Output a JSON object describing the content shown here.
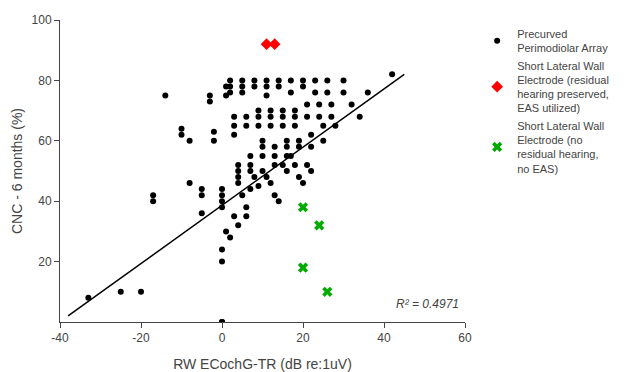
{
  "chart_data": {
    "type": "scatter",
    "xlabel": "RW ECochG-TR (dB re:1uV)",
    "ylabel": "CNC - 6 months (%)",
    "xlim": [
      -40,
      60
    ],
    "ylim": [
      0,
      100
    ],
    "xticks": [
      -40,
      -20,
      0,
      20,
      40,
      60
    ],
    "yticks": [
      20,
      40,
      60,
      80,
      100
    ],
    "grid": false,
    "legend": "right",
    "annotations": [
      "R² = 0.4971"
    ],
    "series": [
      {
        "type": "line",
        "color": "#000000",
        "line_style": "solid",
        "x": [
          -38,
          45
        ],
        "values": [
          2,
          82
        ]
      },
      {
        "type": "scatter",
        "name": "Precurved\nPerimodiolar Array",
        "color": "#000000",
        "marker": "circle",
        "x": [
          -33,
          -25,
          -20,
          -17,
          -17,
          -14,
          -10,
          -10,
          -8,
          -8,
          -5,
          -5,
          -5,
          -3,
          -3,
          -2,
          -2,
          0,
          0,
          0,
          0,
          1,
          1,
          2,
          2,
          2,
          3,
          3,
          3,
          4,
          4,
          4,
          4,
          5,
          5,
          5,
          6,
          6,
          7,
          7,
          7,
          8,
          8,
          9,
          9,
          9,
          10,
          10,
          10,
          11,
          11,
          11,
          12,
          12,
          12,
          13,
          13,
          13,
          14,
          14,
          15,
          15,
          15,
          16,
          16,
          16,
          17,
          17,
          18,
          18,
          18,
          19,
          19,
          20,
          20,
          21,
          21,
          22,
          22,
          23,
          23,
          24,
          24,
          25,
          25,
          26,
          26,
          27,
          27,
          28,
          30,
          30,
          32,
          34,
          36,
          42,
          0,
          0,
          1,
          2,
          3,
          4,
          5,
          6,
          6,
          7,
          8,
          9,
          10,
          11,
          12,
          13,
          14,
          15,
          16,
          17,
          18,
          19,
          20,
          21,
          22,
          0,
          0
        ],
        "values": [
          8,
          10,
          10,
          40,
          42,
          75,
          62,
          64,
          46,
          60,
          42,
          44,
          36,
          75,
          73,
          63,
          60,
          44,
          42,
          40,
          38,
          78,
          75,
          80,
          78,
          76,
          68,
          65,
          62,
          52,
          50,
          48,
          46,
          80,
          78,
          76,
          68,
          65,
          55,
          52,
          50,
          80,
          78,
          70,
          68,
          65,
          60,
          58,
          55,
          80,
          78,
          75,
          70,
          68,
          65,
          58,
          55,
          52,
          80,
          78,
          70,
          68,
          65,
          60,
          58,
          55,
          80,
          76,
          70,
          68,
          65,
          60,
          58,
          80,
          78,
          72,
          68,
          62,
          58,
          80,
          76,
          72,
          68,
          65,
          60,
          80,
          76,
          72,
          68,
          65,
          80,
          76,
          72,
          68,
          76,
          82,
          24,
          20,
          30,
          28,
          35,
          32,
          42,
          38,
          35,
          44,
          48,
          45,
          50,
          48,
          46,
          42,
          40,
          52,
          50,
          55,
          52,
          48,
          46,
          52,
          50,
          0,
          0
        ]
      },
      {
        "type": "scatter",
        "name": "Short Lateral Wall\nElectrode (residual\nhearing preserved,\nEAS utilized)",
        "color": "#ff0000",
        "marker": "diamond",
        "x": [
          11,
          13
        ],
        "values": [
          92,
          92
        ]
      },
      {
        "type": "scatter",
        "name": "Short Lateral Wall\nElectrode (no\nresidual hearing,\nno EAS)",
        "color": "#00aa00",
        "marker": "x",
        "x": [
          20,
          24,
          20,
          26
        ],
        "values": [
          38,
          32,
          18,
          10
        ]
      }
    ]
  }
}
